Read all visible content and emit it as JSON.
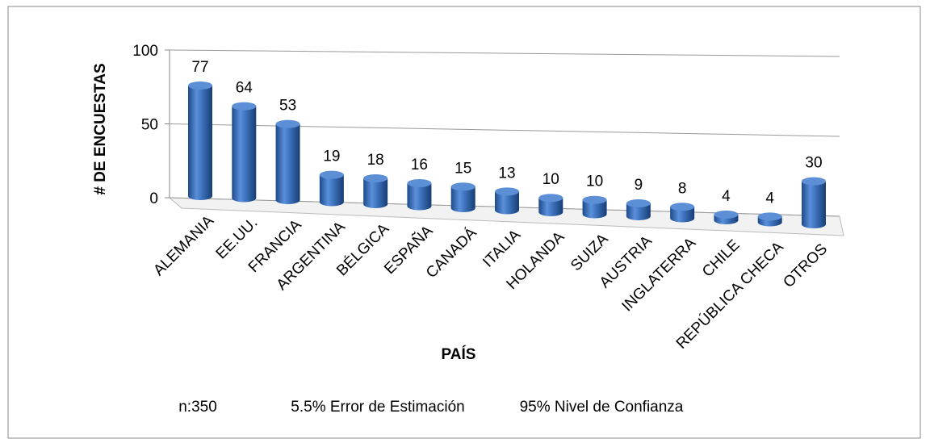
{
  "chart_data": {
    "type": "bar3d",
    "y_label": "# DE ENCUESTAS",
    "x_label": "PAÍS",
    "categories": [
      "ALEMANIA",
      "EE.UU.",
      "FRANCIA",
      "ARGENTINA",
      "BÉLGICA",
      "ESPAÑA",
      "CANADÁ",
      "ITALIA",
      "HOLANDA",
      "SUIZA",
      "AUSTRIA",
      "INGLATERRA",
      "CHILE",
      "REPÚBLICA CHECA",
      "OTROS"
    ],
    "values": [
      77,
      64,
      53,
      19,
      18,
      16,
      15,
      13,
      10,
      10,
      9,
      8,
      4,
      4,
      30
    ],
    "color": "#3a6fb8",
    "ylim": [
      0,
      100
    ],
    "yticks": [
      0,
      50,
      100
    ],
    "grid": true,
    "notes": [
      "n:350",
      "5.5% Error de Estimación",
      "95% Nivel de Confianza"
    ]
  }
}
